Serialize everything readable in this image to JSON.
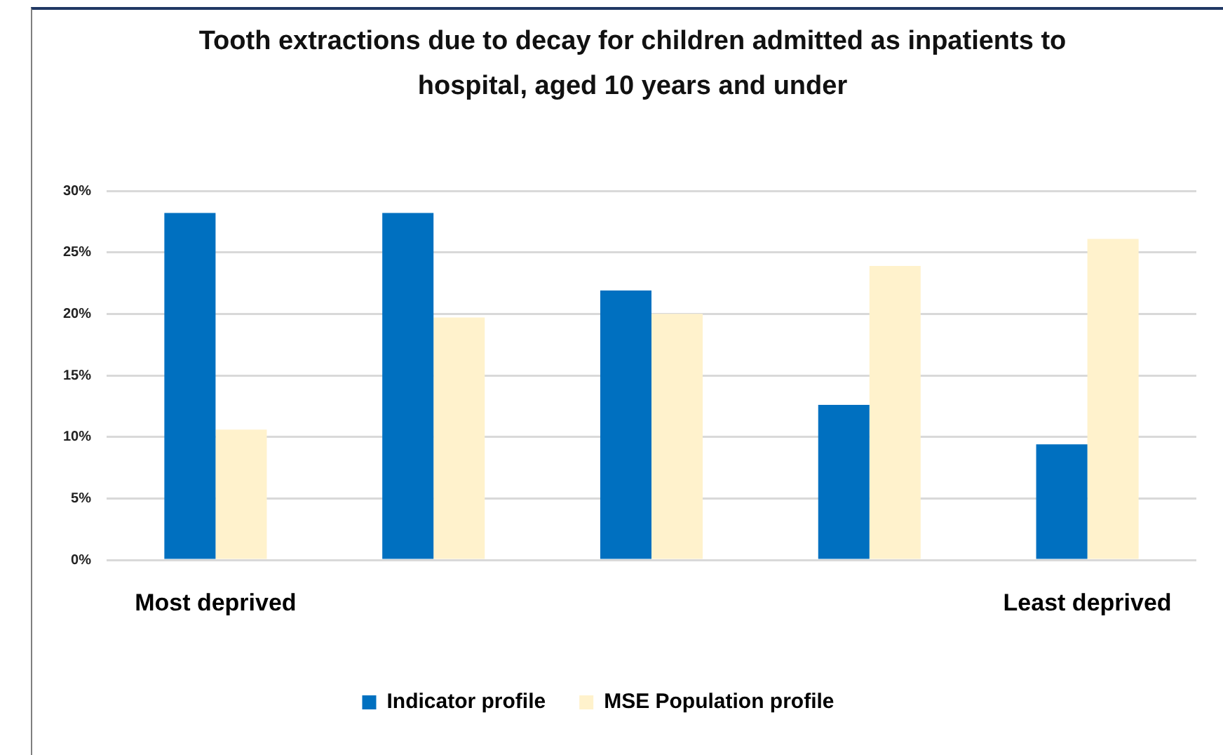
{
  "chart_data": {
    "type": "bar",
    "title": "Tooth extractions due to decay for children admitted as inpatients to hospital, aged 10 years and under",
    "categories": [
      "Most deprived",
      null,
      null,
      null,
      "Least deprived"
    ],
    "series": [
      {
        "name": "Indicator profile",
        "color": "#0070c0",
        "values": [
          28.2,
          28.2,
          21.9,
          12.6,
          9.4
        ]
      },
      {
        "name": "MSE Population profile",
        "color": "#fff2cc",
        "values": [
          10.6,
          19.7,
          20.0,
          23.9,
          26.1
        ]
      }
    ],
    "ylim": [
      0,
      30
    ],
    "yticks": [
      {
        "value": 0,
        "label": "0%"
      },
      {
        "value": 5,
        "label": "5%"
      },
      {
        "value": 10,
        "label": "10%"
      },
      {
        "value": 15,
        "label": "15%"
      },
      {
        "value": 20,
        "label": "20%"
      },
      {
        "value": 25,
        "label": "25%"
      },
      {
        "value": 30,
        "label": "30%"
      }
    ],
    "grid": "y",
    "legend": "bottom"
  }
}
